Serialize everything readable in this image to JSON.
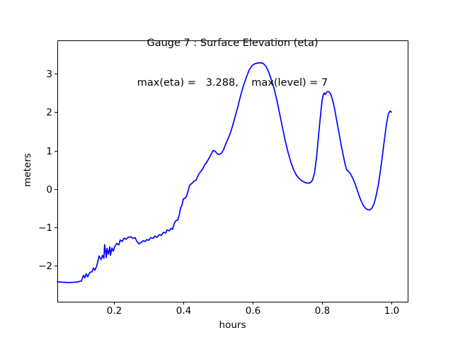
{
  "chart_data": {
    "type": "line",
    "title": "Gauge 7 : Surface Elevation (eta)",
    "subtitle": "max(eta) =   3.288,    max(level) = 7",
    "xlabel": "hours",
    "ylabel": "meters",
    "max_eta": 3.288,
    "max_level": 7,
    "xlim": [
      0.0367,
      1.047
    ],
    "ylim": [
      -2.94,
      3.87
    ],
    "grid": false,
    "legend": "none",
    "line_color": "#0000ff",
    "frame_color": "#000000",
    "x_ticks": [
      {
        "v": 0.2,
        "label": "0.2"
      },
      {
        "v": 0.4,
        "label": "0.4"
      },
      {
        "v": 0.6,
        "label": "0.6"
      },
      {
        "v": 0.8,
        "label": "0.8"
      },
      {
        "v": 1.0,
        "label": "1.0"
      }
    ],
    "y_ticks": [
      {
        "v": 3,
        "label": "3"
      },
      {
        "v": 2,
        "label": "2"
      },
      {
        "v": 1,
        "label": "1"
      },
      {
        "v": 0,
        "label": "0"
      },
      {
        "v": -1,
        "label": "−1"
      },
      {
        "v": -2,
        "label": "−2"
      }
    ],
    "series": [
      {
        "name": "eta",
        "points": [
          [
            0.037,
            -2.42
          ],
          [
            0.05,
            -2.43
          ],
          [
            0.07,
            -2.44
          ],
          [
            0.09,
            -2.43
          ],
          [
            0.106,
            -2.4
          ],
          [
            0.112,
            -2.25
          ],
          [
            0.116,
            -2.32
          ],
          [
            0.12,
            -2.21
          ],
          [
            0.124,
            -2.29
          ],
          [
            0.131,
            -2.17
          ],
          [
            0.137,
            -2.16
          ],
          [
            0.141,
            -2.06
          ],
          [
            0.145,
            -2.12
          ],
          [
            0.151,
            -1.99
          ],
          [
            0.157,
            -1.75
          ],
          [
            0.163,
            -1.84
          ],
          [
            0.167,
            -1.73
          ],
          [
            0.171,
            -1.81
          ],
          [
            0.173,
            -1.45
          ],
          [
            0.178,
            -1.79
          ],
          [
            0.18,
            -1.55
          ],
          [
            0.184,
            -1.7
          ],
          [
            0.188,
            -1.51
          ],
          [
            0.19,
            -1.73
          ],
          [
            0.194,
            -1.54
          ],
          [
            0.198,
            -1.62
          ],
          [
            0.202,
            -1.51
          ],
          [
            0.208,
            -1.42
          ],
          [
            0.214,
            -1.46
          ],
          [
            0.218,
            -1.33
          ],
          [
            0.224,
            -1.37
          ],
          [
            0.229,
            -1.28
          ],
          [
            0.235,
            -1.31
          ],
          [
            0.241,
            -1.26
          ],
          [
            0.249,
            -1.25
          ],
          [
            0.255,
            -1.29
          ],
          [
            0.261,
            -1.27
          ],
          [
            0.265,
            -1.35
          ],
          [
            0.271,
            -1.43
          ],
          [
            0.278,
            -1.4
          ],
          [
            0.284,
            -1.35
          ],
          [
            0.29,
            -1.37
          ],
          [
            0.294,
            -1.32
          ],
          [
            0.3,
            -1.34
          ],
          [
            0.306,
            -1.27
          ],
          [
            0.312,
            -1.29
          ],
          [
            0.318,
            -1.23
          ],
          [
            0.324,
            -1.26
          ],
          [
            0.331,
            -1.19
          ],
          [
            0.337,
            -1.21
          ],
          [
            0.343,
            -1.13
          ],
          [
            0.349,
            -1.15
          ],
          [
            0.353,
            -1.07
          ],
          [
            0.359,
            -1.09
          ],
          [
            0.365,
            -1.03
          ],
          [
            0.369,
            -1.05
          ],
          [
            0.373,
            -0.92
          ],
          [
            0.378,
            -0.83
          ],
          [
            0.384,
            -0.81
          ],
          [
            0.388,
            -0.69
          ],
          [
            0.392,
            -0.5
          ],
          [
            0.396,
            -0.43
          ],
          [
            0.4,
            -0.26
          ],
          [
            0.406,
            -0.24
          ],
          [
            0.41,
            -0.17
          ],
          [
            0.414,
            -0.04
          ],
          [
            0.418,
            0.09
          ],
          [
            0.424,
            0.14
          ],
          [
            0.431,
            0.2
          ],
          [
            0.437,
            0.23
          ],
          [
            0.443,
            0.36
          ],
          [
            0.449,
            0.44
          ],
          [
            0.455,
            0.51
          ],
          [
            0.461,
            0.62
          ],
          [
            0.467,
            0.69
          ],
          [
            0.473,
            0.78
          ],
          [
            0.48,
            0.9
          ],
          [
            0.486,
            1.0
          ],
          [
            0.492,
            0.98
          ],
          [
            0.498,
            0.91
          ],
          [
            0.504,
            0.9
          ],
          [
            0.51,
            0.93
          ],
          [
            0.516,
            1.02
          ],
          [
            0.524,
            1.21
          ],
          [
            0.533,
            1.39
          ],
          [
            0.541,
            1.61
          ],
          [
            0.549,
            1.87
          ],
          [
            0.557,
            2.13
          ],
          [
            0.565,
            2.42
          ],
          [
            0.573,
            2.68
          ],
          [
            0.582,
            2.92
          ],
          [
            0.59,
            3.1
          ],
          [
            0.598,
            3.21
          ],
          [
            0.606,
            3.26
          ],
          [
            0.614,
            3.28
          ],
          [
            0.622,
            3.288
          ],
          [
            0.63,
            3.27
          ],
          [
            0.638,
            3.2
          ],
          [
            0.646,
            3.05
          ],
          [
            0.654,
            2.85
          ],
          [
            0.662,
            2.6
          ],
          [
            0.67,
            2.3
          ],
          [
            0.678,
            1.95
          ],
          [
            0.686,
            1.6
          ],
          [
            0.694,
            1.25
          ],
          [
            0.702,
            0.95
          ],
          [
            0.71,
            0.7
          ],
          [
            0.718,
            0.5
          ],
          [
            0.726,
            0.36
          ],
          [
            0.734,
            0.27
          ],
          [
            0.742,
            0.21
          ],
          [
            0.75,
            0.17
          ],
          [
            0.758,
            0.15
          ],
          [
            0.766,
            0.16
          ],
          [
            0.772,
            0.22
          ],
          [
            0.778,
            0.4
          ],
          [
            0.784,
            0.8
          ],
          [
            0.79,
            1.4
          ],
          [
            0.796,
            1.95
          ],
          [
            0.8,
            2.3
          ],
          [
            0.803,
            2.44
          ],
          [
            0.806,
            2.5
          ],
          [
            0.809,
            2.46
          ],
          [
            0.813,
            2.52
          ],
          [
            0.817,
            2.54
          ],
          [
            0.821,
            2.52
          ],
          [
            0.825,
            2.47
          ],
          [
            0.831,
            2.3
          ],
          [
            0.837,
            2.05
          ],
          [
            0.843,
            1.75
          ],
          [
            0.849,
            1.45
          ],
          [
            0.855,
            1.15
          ],
          [
            0.861,
            0.88
          ],
          [
            0.867,
            0.62
          ],
          [
            0.871,
            0.5
          ],
          [
            0.877,
            0.45
          ],
          [
            0.883,
            0.38
          ],
          [
            0.889,
            0.27
          ],
          [
            0.895,
            0.14
          ],
          [
            0.901,
            -0.02
          ],
          [
            0.907,
            -0.18
          ],
          [
            0.913,
            -0.32
          ],
          [
            0.919,
            -0.43
          ],
          [
            0.925,
            -0.5
          ],
          [
            0.931,
            -0.54
          ],
          [
            0.937,
            -0.55
          ],
          [
            0.944,
            -0.5
          ],
          [
            0.95,
            -0.38
          ],
          [
            0.956,
            -0.18
          ],
          [
            0.962,
            0.1
          ],
          [
            0.968,
            0.45
          ],
          [
            0.974,
            0.85
          ],
          [
            0.98,
            1.3
          ],
          [
            0.986,
            1.7
          ],
          [
            0.991,
            1.95
          ],
          [
            0.996,
            2.03
          ],
          [
            1.0,
            2.0
          ]
        ]
      }
    ]
  }
}
